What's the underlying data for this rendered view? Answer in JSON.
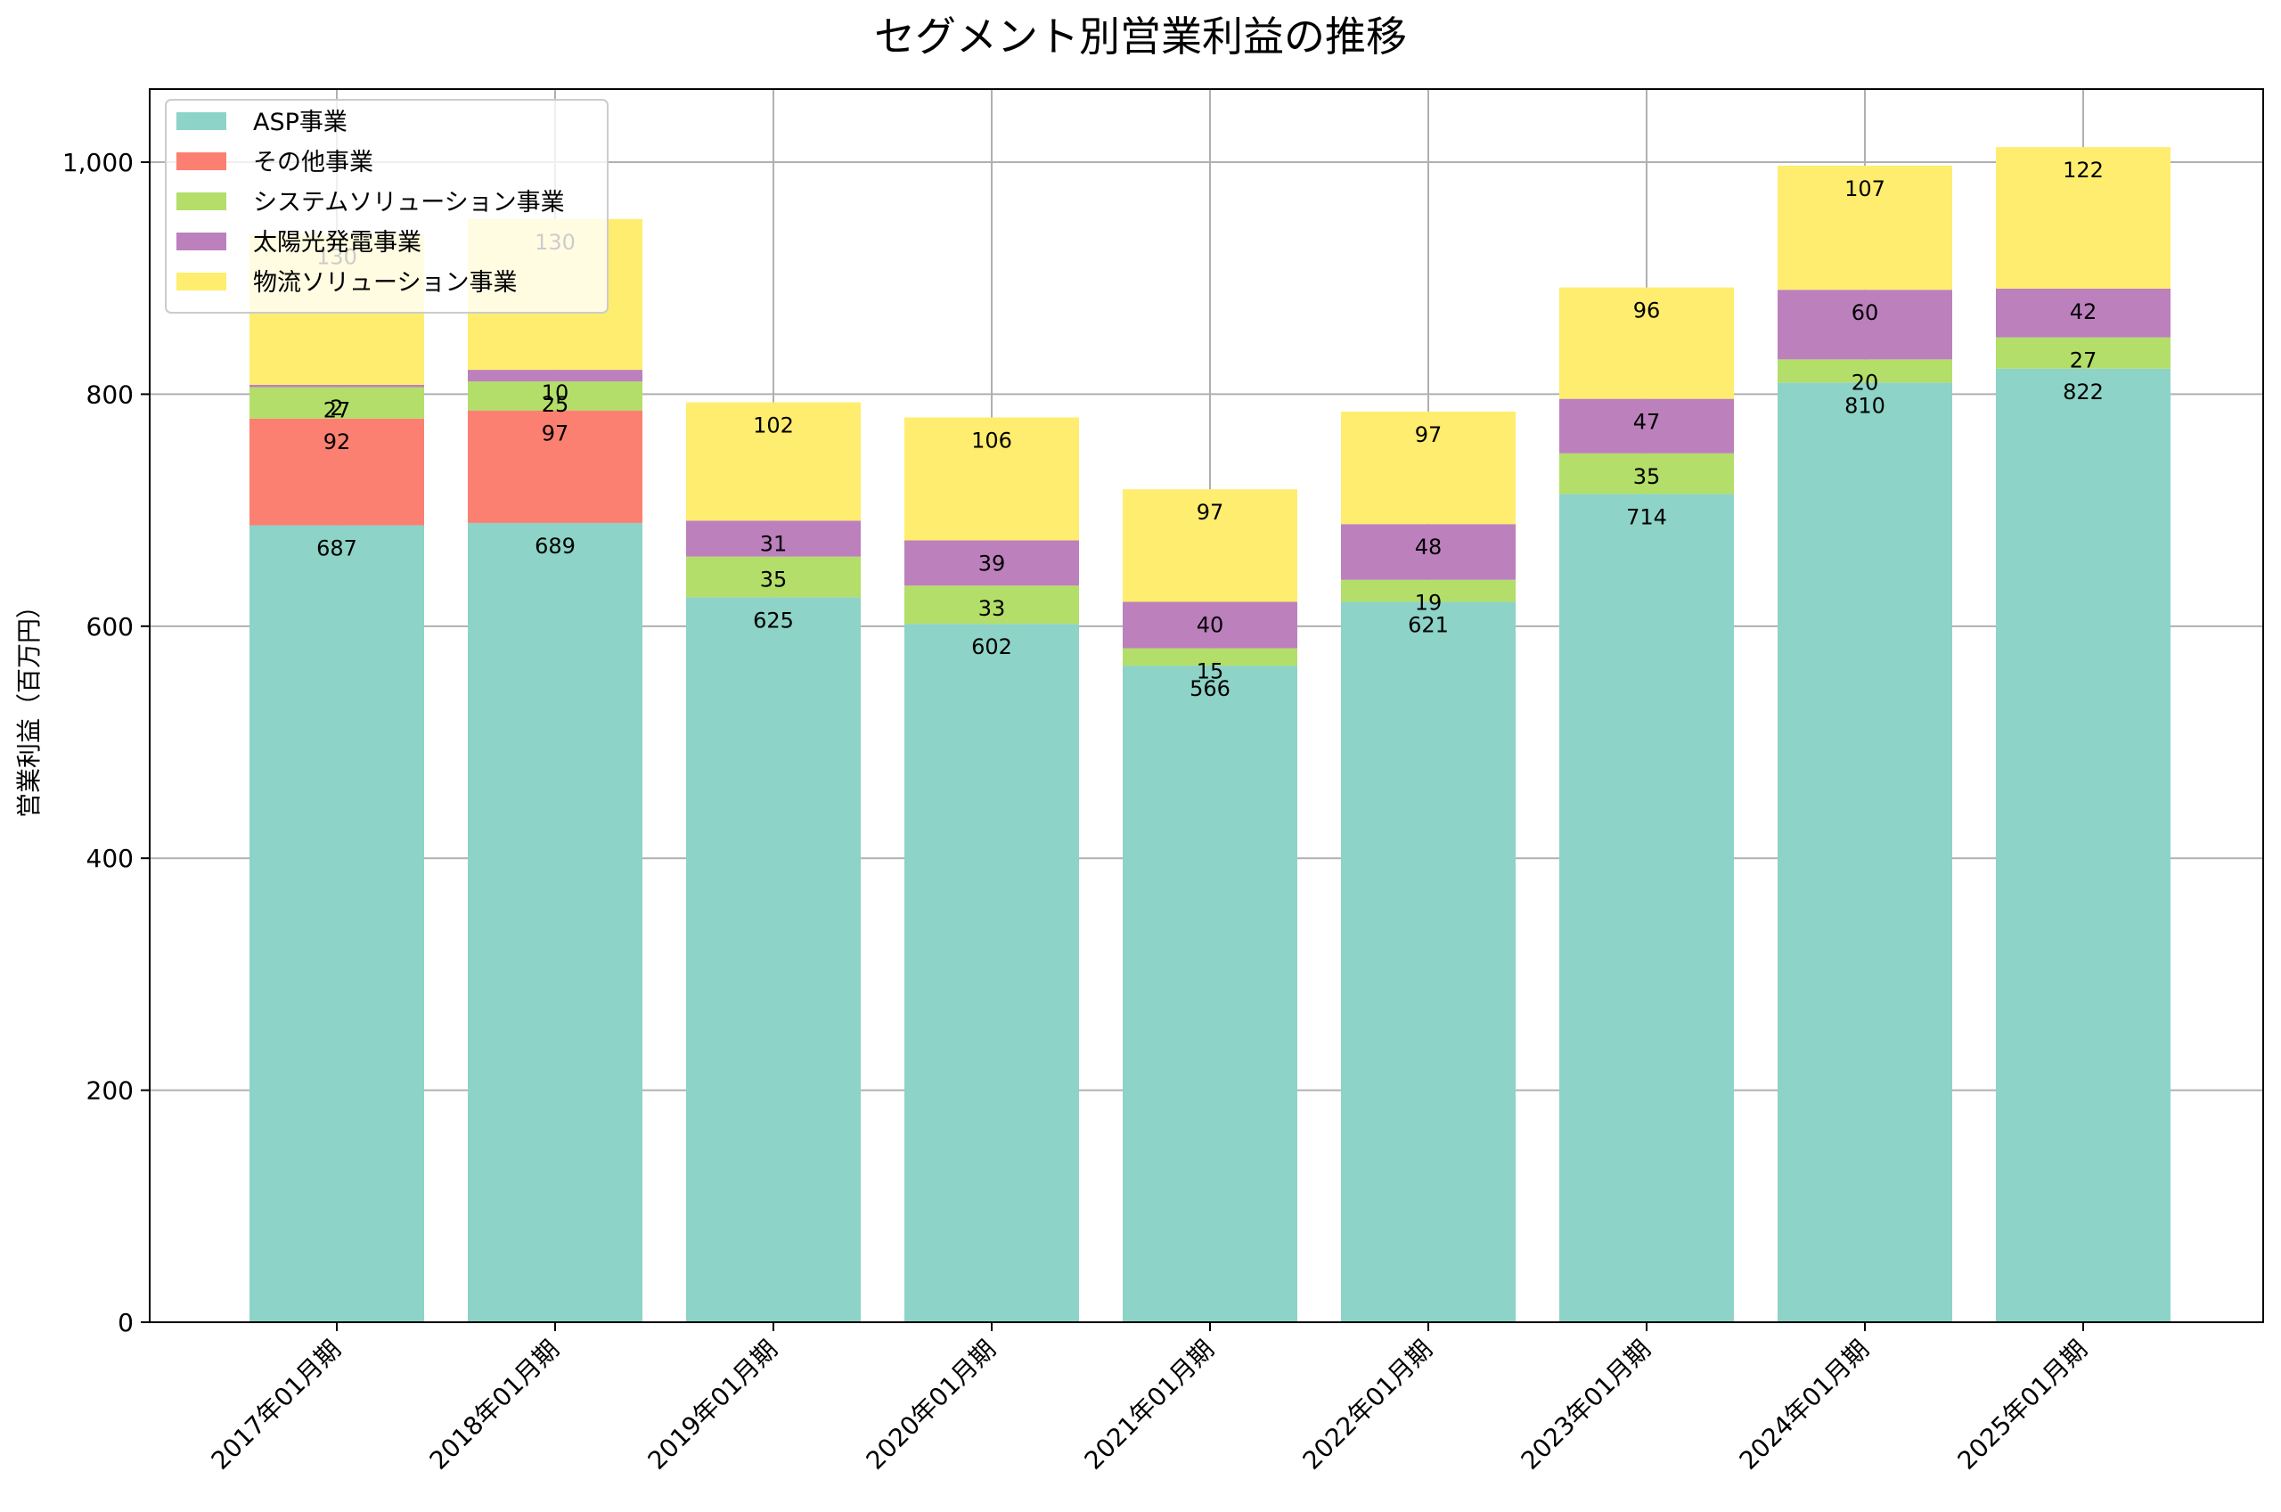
{
  "chart_data": {
    "type": "bar",
    "stacked": true,
    "title": "セグメント別営業利益の推移",
    "xlabel": "",
    "ylabel": "営業利益（百万円）",
    "ylim": [
      0,
      1063
    ],
    "yticks": [
      0,
      200,
      400,
      600,
      800,
      1000
    ],
    "ytick_labels": [
      "0",
      "200",
      "400",
      "600",
      "800",
      "1,000"
    ],
    "grid": true,
    "legend_position": "top-left",
    "categories": [
      "2017年01月期",
      "2018年01月期",
      "2019年01月期",
      "2020年01月期",
      "2021年01月期",
      "2022年01月期",
      "2023年01月期",
      "2024年01月期",
      "2025年01月期"
    ],
    "series": [
      {
        "name": "ASP事業",
        "color": "#8dd3c7",
        "values": [
          687,
          689,
          625,
          602,
          566,
          621,
          714,
          810,
          822
        ]
      },
      {
        "name": "その他事業",
        "color": "#fb8072",
        "values": [
          92,
          97,
          null,
          null,
          null,
          null,
          null,
          null,
          null
        ]
      },
      {
        "name": "システムソリューション事業",
        "color": "#b3de69",
        "values": [
          27,
          25,
          35,
          33,
          15,
          19,
          35,
          20,
          27
        ]
      },
      {
        "name": "太陽光発電事業",
        "color": "#bc80bd",
        "values": [
          2,
          10,
          31,
          39,
          40,
          48,
          47,
          60,
          42
        ]
      },
      {
        "name": "物流ソリューション事業",
        "color": "#ffed6f",
        "values": [
          130,
          130,
          102,
          106,
          97,
          97,
          96,
          107,
          122
        ]
      }
    ]
  }
}
